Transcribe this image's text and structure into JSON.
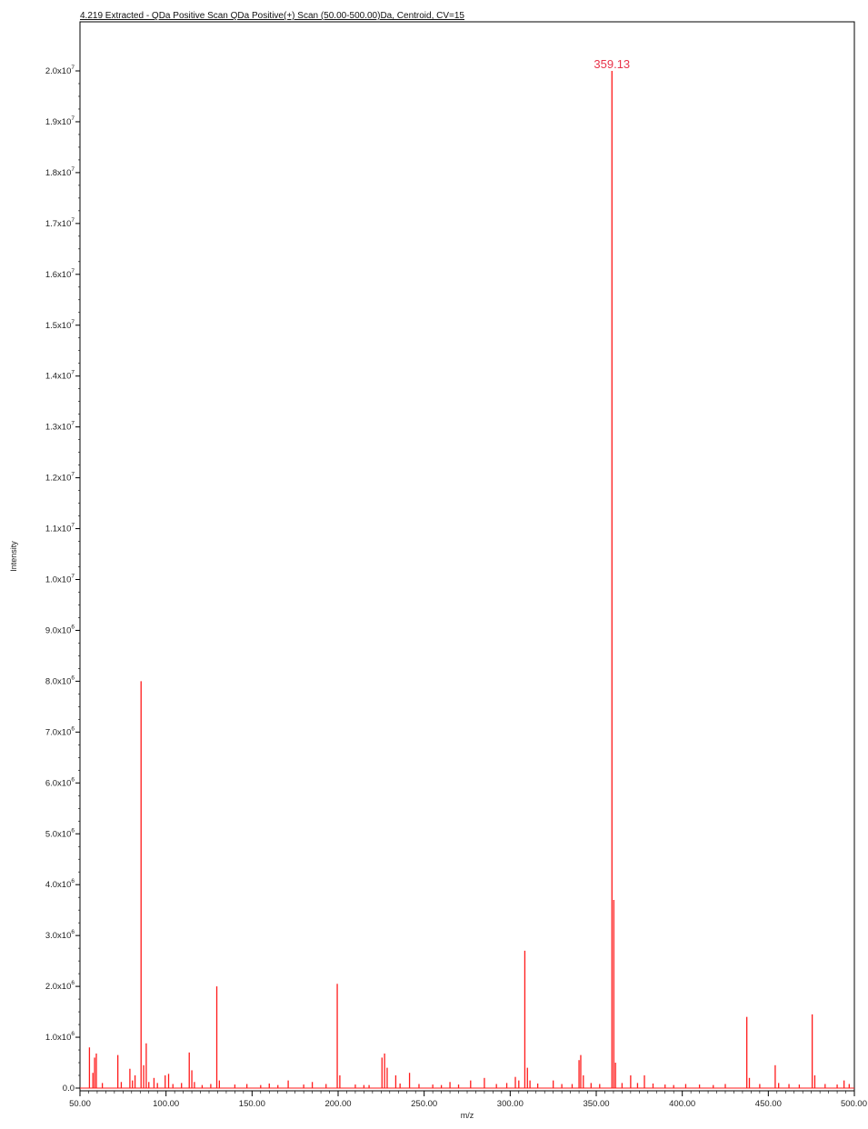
{
  "chart_data": {
    "type": "bar",
    "title": "4.219 Extracted - QDa Positive Scan QDa Positive(+) Scan (50.00-500.00)Da, Centroid, CV=15",
    "xlabel": "m/z",
    "ylabel": "Intensity",
    "xlim": [
      50.0,
      500.0
    ],
    "ylim": [
      0,
      20500000
    ],
    "grid": false,
    "series_color": "#ff1a1a",
    "annotation_color": "#e8334a",
    "x_ticks": [
      {
        "value": 50,
        "label": "50.00"
      },
      {
        "value": 100,
        "label": "100.00"
      },
      {
        "value": 150,
        "label": "150.00"
      },
      {
        "value": 200,
        "label": "200.00"
      },
      {
        "value": 250,
        "label": "250.00"
      },
      {
        "value": 300,
        "label": "300.00"
      },
      {
        "value": 350,
        "label": "350.00"
      },
      {
        "value": 400,
        "label": "400.00"
      },
      {
        "value": 450,
        "label": "450.00"
      },
      {
        "value": 500,
        "label": "500.00"
      }
    ],
    "y_ticks": [
      {
        "value": 0,
        "mant": "0.0",
        "exp": ""
      },
      {
        "value": 1000000,
        "mant": "1.0x10",
        "exp": "6"
      },
      {
        "value": 2000000,
        "mant": "2.0x10",
        "exp": "6"
      },
      {
        "value": 3000000,
        "mant": "3.0x10",
        "exp": "6"
      },
      {
        "value": 4000000,
        "mant": "4.0x10",
        "exp": "6"
      },
      {
        "value": 5000000,
        "mant": "5.0x10",
        "exp": "6"
      },
      {
        "value": 6000000,
        "mant": "6.0x10",
        "exp": "6"
      },
      {
        "value": 7000000,
        "mant": "7.0x10",
        "exp": "6"
      },
      {
        "value": 8000000,
        "mant": "8.0x10",
        "exp": "6"
      },
      {
        "value": 9000000,
        "mant": "9.0x10",
        "exp": "6"
      },
      {
        "value": 10000000,
        "mant": "1.0x10",
        "exp": "7"
      },
      {
        "value": 11000000,
        "mant": "1.1x10",
        "exp": "7"
      },
      {
        "value": 12000000,
        "mant": "1.2x10",
        "exp": "7"
      },
      {
        "value": 13000000,
        "mant": "1.3x10",
        "exp": "7"
      },
      {
        "value": 14000000,
        "mant": "1.4x10",
        "exp": "7"
      },
      {
        "value": 15000000,
        "mant": "1.5x10",
        "exp": "7"
      },
      {
        "value": 16000000,
        "mant": "1.6x10",
        "exp": "7"
      },
      {
        "value": 17000000,
        "mant": "1.7x10",
        "exp": "7"
      },
      {
        "value": 18000000,
        "mant": "1.8x10",
        "exp": "7"
      },
      {
        "value": 19000000,
        "mant": "1.9x10",
        "exp": "7"
      },
      {
        "value": 20000000,
        "mant": "2.0x10",
        "exp": "7"
      }
    ],
    "peaks": [
      {
        "mz": 55.5,
        "intensity": 800000
      },
      {
        "mz": 57.5,
        "intensity": 300000
      },
      {
        "mz": 58.5,
        "intensity": 600000
      },
      {
        "mz": 59.5,
        "intensity": 680000
      },
      {
        "mz": 63.0,
        "intensity": 100000
      },
      {
        "mz": 72.0,
        "intensity": 650000
      },
      {
        "mz": 74.0,
        "intensity": 120000
      },
      {
        "mz": 79.0,
        "intensity": 380000
      },
      {
        "mz": 80.5,
        "intensity": 150000
      },
      {
        "mz": 82.0,
        "intensity": 250000
      },
      {
        "mz": 85.5,
        "intensity": 8000000
      },
      {
        "mz": 87.0,
        "intensity": 450000
      },
      {
        "mz": 88.5,
        "intensity": 880000
      },
      {
        "mz": 90.0,
        "intensity": 120000
      },
      {
        "mz": 93.0,
        "intensity": 200000
      },
      {
        "mz": 95.0,
        "intensity": 100000
      },
      {
        "mz": 99.5,
        "intensity": 250000
      },
      {
        "mz": 101.5,
        "intensity": 280000
      },
      {
        "mz": 104.0,
        "intensity": 80000
      },
      {
        "mz": 109.0,
        "intensity": 100000
      },
      {
        "mz": 113.5,
        "intensity": 700000
      },
      {
        "mz": 115.0,
        "intensity": 350000
      },
      {
        "mz": 116.5,
        "intensity": 120000
      },
      {
        "mz": 121.0,
        "intensity": 60000
      },
      {
        "mz": 126.0,
        "intensity": 80000
      },
      {
        "mz": 129.5,
        "intensity": 2000000
      },
      {
        "mz": 131.0,
        "intensity": 150000
      },
      {
        "mz": 140.0,
        "intensity": 70000
      },
      {
        "mz": 147.0,
        "intensity": 80000
      },
      {
        "mz": 155.0,
        "intensity": 60000
      },
      {
        "mz": 160.0,
        "intensity": 90000
      },
      {
        "mz": 165.0,
        "intensity": 60000
      },
      {
        "mz": 171.0,
        "intensity": 150000
      },
      {
        "mz": 180.0,
        "intensity": 70000
      },
      {
        "mz": 185.0,
        "intensity": 120000
      },
      {
        "mz": 193.0,
        "intensity": 80000
      },
      {
        "mz": 199.5,
        "intensity": 2050000
      },
      {
        "mz": 201.0,
        "intensity": 250000
      },
      {
        "mz": 210.0,
        "intensity": 70000
      },
      {
        "mz": 215.0,
        "intensity": 60000
      },
      {
        "mz": 218.0,
        "intensity": 60000
      },
      {
        "mz": 225.5,
        "intensity": 600000
      },
      {
        "mz": 227.0,
        "intensity": 680000
      },
      {
        "mz": 228.5,
        "intensity": 400000
      },
      {
        "mz": 233.5,
        "intensity": 250000
      },
      {
        "mz": 236.0,
        "intensity": 90000
      },
      {
        "mz": 241.5,
        "intensity": 300000
      },
      {
        "mz": 247.0,
        "intensity": 80000
      },
      {
        "mz": 255.0,
        "intensity": 70000
      },
      {
        "mz": 260.0,
        "intensity": 60000
      },
      {
        "mz": 265.0,
        "intensity": 120000
      },
      {
        "mz": 270.0,
        "intensity": 70000
      },
      {
        "mz": 277.0,
        "intensity": 150000
      },
      {
        "mz": 285.0,
        "intensity": 200000
      },
      {
        "mz": 292.0,
        "intensity": 80000
      },
      {
        "mz": 298.0,
        "intensity": 100000
      },
      {
        "mz": 303.0,
        "intensity": 220000
      },
      {
        "mz": 305.0,
        "intensity": 150000
      },
      {
        "mz": 308.5,
        "intensity": 2700000
      },
      {
        "mz": 310.0,
        "intensity": 400000
      },
      {
        "mz": 311.5,
        "intensity": 150000
      },
      {
        "mz": 316.0,
        "intensity": 90000
      },
      {
        "mz": 325.0,
        "intensity": 150000
      },
      {
        "mz": 330.0,
        "intensity": 80000
      },
      {
        "mz": 336.0,
        "intensity": 80000
      },
      {
        "mz": 340.0,
        "intensity": 550000
      },
      {
        "mz": 341.0,
        "intensity": 650000
      },
      {
        "mz": 342.5,
        "intensity": 250000
      },
      {
        "mz": 347.0,
        "intensity": 100000
      },
      {
        "mz": 352.0,
        "intensity": 80000
      },
      {
        "mz": 359.13,
        "intensity": 20000000
      },
      {
        "mz": 360.2,
        "intensity": 3700000
      },
      {
        "mz": 361.2,
        "intensity": 500000
      },
      {
        "mz": 365.0,
        "intensity": 100000
      },
      {
        "mz": 370.0,
        "intensity": 250000
      },
      {
        "mz": 374.0,
        "intensity": 100000
      },
      {
        "mz": 378.0,
        "intensity": 250000
      },
      {
        "mz": 383.0,
        "intensity": 90000
      },
      {
        "mz": 390.0,
        "intensity": 70000
      },
      {
        "mz": 395.0,
        "intensity": 60000
      },
      {
        "mz": 402.0,
        "intensity": 80000
      },
      {
        "mz": 410.0,
        "intensity": 70000
      },
      {
        "mz": 418.0,
        "intensity": 60000
      },
      {
        "mz": 425.0,
        "intensity": 80000
      },
      {
        "mz": 437.5,
        "intensity": 1400000
      },
      {
        "mz": 439.0,
        "intensity": 200000
      },
      {
        "mz": 445.0,
        "intensity": 80000
      },
      {
        "mz": 454.0,
        "intensity": 450000
      },
      {
        "mz": 456.0,
        "intensity": 100000
      },
      {
        "mz": 462.0,
        "intensity": 80000
      },
      {
        "mz": 468.0,
        "intensity": 70000
      },
      {
        "mz": 475.5,
        "intensity": 1450000
      },
      {
        "mz": 477.0,
        "intensity": 250000
      },
      {
        "mz": 483.0,
        "intensity": 80000
      },
      {
        "mz": 490.0,
        "intensity": 70000
      },
      {
        "mz": 494.0,
        "intensity": 150000
      },
      {
        "mz": 497.0,
        "intensity": 80000
      }
    ],
    "annotations": [
      {
        "mz": 359.13,
        "intensity": 20000000,
        "text": "359.13"
      }
    ]
  }
}
